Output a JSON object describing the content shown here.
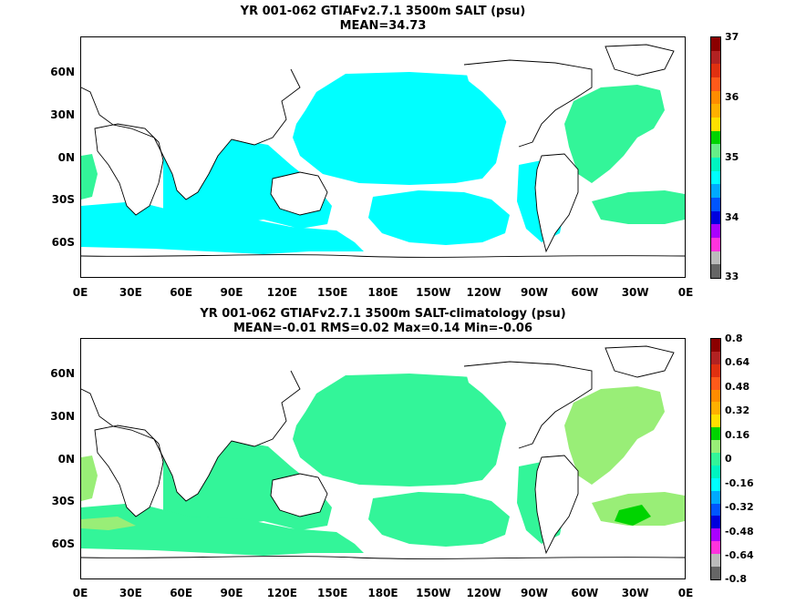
{
  "chart_data": [
    {
      "type": "heatmap",
      "title": "YR 001-062 GTIAFv2.7.1 3500m SALT (psu)",
      "subtitle": "MEAN=34.73",
      "x_ticks": [
        "0E",
        "30E",
        "60E",
        "90E",
        "120E",
        "150E",
        "180E",
        "150W",
        "120W",
        "90W",
        "60W",
        "30W",
        "0E"
      ],
      "y_ticks": [
        "60N",
        "30N",
        "0N",
        "30S",
        "60S"
      ],
      "colorbar_labels": [
        "37",
        "36",
        "35",
        "34",
        "33"
      ],
      "colorbar_colors": [
        "#8b0000",
        "#b22222",
        "#e03010",
        "#ff5a1a",
        "#ff8c00",
        "#ffb000",
        "#ffe000",
        "#00d400",
        "#66ee88",
        "#00f5c0",
        "#00ffff",
        "#00aaff",
        "#0055ff",
        "#0000dd",
        "#aa00ff",
        "#ff33dd",
        "#bbbbbb",
        "#666666"
      ],
      "field_color": "#00ffff",
      "secondary_color": "#33f599",
      "mean": 34.73
    },
    {
      "type": "heatmap",
      "title": "YR 001-062 GTIAFv2.7.1 3500m SALT-climatology (psu)",
      "subtitle": "MEAN=-0.01   RMS=0.02   Max=0.14   Min=-0.06",
      "x_ticks": [
        "0E",
        "30E",
        "60E",
        "90E",
        "120E",
        "150E",
        "180E",
        "150W",
        "120W",
        "90W",
        "60W",
        "30W",
        "0E"
      ],
      "y_ticks": [
        "60N",
        "30N",
        "0N",
        "30S",
        "60S"
      ],
      "colorbar_labels": [
        "0.8",
        "0.64",
        "0.48",
        "0.32",
        "0.16",
        "0",
        "-0.16",
        "-0.32",
        "-0.48",
        "-0.64",
        "-0.8"
      ],
      "colorbar_colors": [
        "#8b0000",
        "#b22222",
        "#e03010",
        "#ff5a1a",
        "#ff8c00",
        "#ffb000",
        "#ffe000",
        "#00d400",
        "#99ee77",
        "#33f599",
        "#00f5c0",
        "#00ffff",
        "#00aaff",
        "#0055ff",
        "#0000dd",
        "#aa00ff",
        "#ff33dd",
        "#bbbbbb",
        "#666666"
      ],
      "field_color": "#33f599",
      "secondary_color": "#99ee77",
      "mean": -0.01,
      "rms": 0.02,
      "max": 0.14,
      "min": -0.06
    }
  ]
}
